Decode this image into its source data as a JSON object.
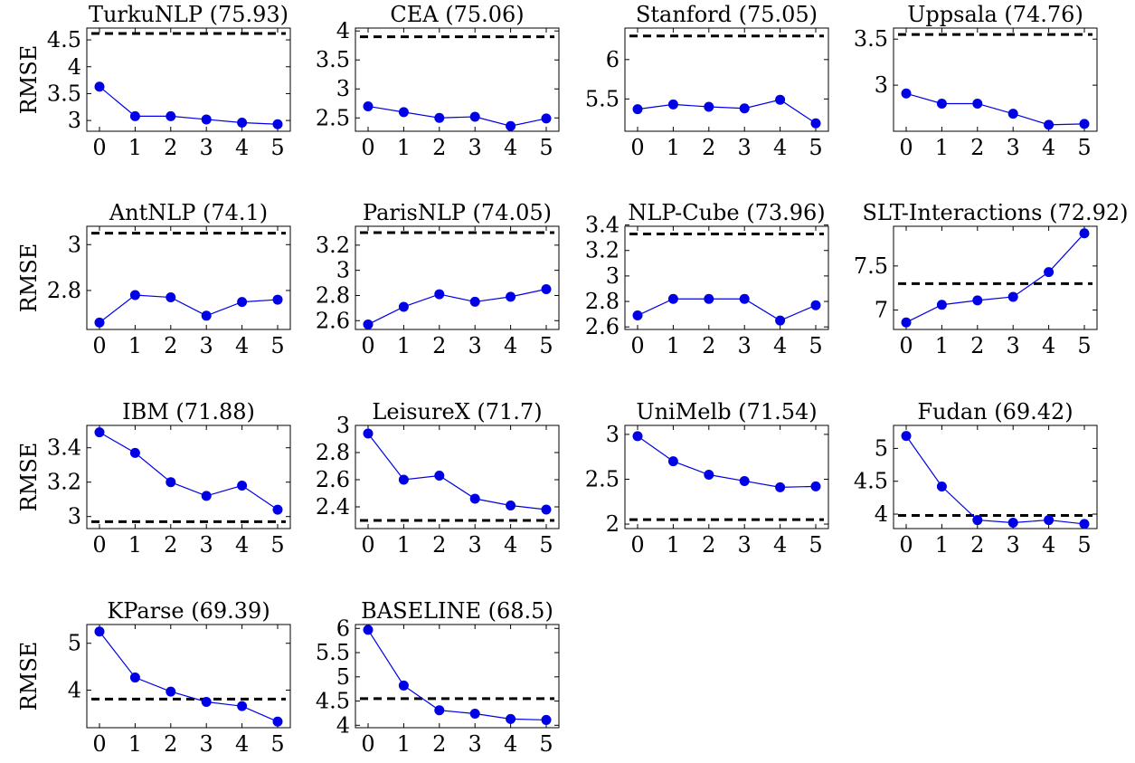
{
  "figure": {
    "ylabel": "RMSE"
  },
  "chart_data": [
    {
      "type": "line",
      "title": "TurkuNLP (75.93)",
      "ylabel": "RMSE",
      "x": [
        0,
        1,
        2,
        3,
        4,
        5
      ],
      "values": [
        3.63,
        3.08,
        3.08,
        3.02,
        2.96,
        2.93
      ],
      "baseline": 4.62,
      "ylim": [
        2.8,
        4.72
      ],
      "yticks": [
        3,
        3.5,
        4,
        4.5
      ],
      "ytick_labels": [
        "3",
        "3.5",
        "4",
        "4.5"
      ]
    },
    {
      "type": "line",
      "title": "CEA (75.06)",
      "ylabel": "",
      "x": [
        0,
        1,
        2,
        3,
        4,
        5
      ],
      "values": [
        2.7,
        2.6,
        2.5,
        2.52,
        2.36,
        2.49
      ],
      "baseline": 3.9,
      "ylim": [
        2.27,
        4.05
      ],
      "yticks": [
        2.5,
        3,
        3.5,
        4
      ],
      "ytick_labels": [
        "2.5",
        "3",
        "3.5",
        "4"
      ]
    },
    {
      "type": "line",
      "title": "Stanford (75.05)",
      "ylabel": "",
      "x": [
        0,
        1,
        2,
        3,
        4,
        5
      ],
      "values": [
        5.37,
        5.43,
        5.4,
        5.38,
        5.49,
        5.19
      ],
      "baseline": 6.3,
      "ylim": [
        5.09,
        6.4
      ],
      "yticks": [
        5.5,
        6
      ],
      "ytick_labels": [
        "5.5",
        "6"
      ]
    },
    {
      "type": "line",
      "title": "Uppsala (74.76)",
      "ylabel": "",
      "x": [
        0,
        1,
        2,
        3,
        4,
        5
      ],
      "values": [
        2.91,
        2.8,
        2.8,
        2.69,
        2.57,
        2.58
      ],
      "baseline": 3.55,
      "ylim": [
        2.5,
        3.62
      ],
      "yticks": [
        3,
        3.5
      ],
      "ytick_labels": [
        "3",
        "3.5"
      ]
    },
    {
      "type": "line",
      "title": "AntNLP (74.1)",
      "ylabel": "RMSE",
      "x": [
        0,
        1,
        2,
        3,
        4,
        5
      ],
      "values": [
        2.66,
        2.78,
        2.77,
        2.69,
        2.75,
        2.76
      ],
      "baseline": 3.05,
      "ylim": [
        2.63,
        3.08
      ],
      "yticks": [
        2.8,
        3
      ],
      "ytick_labels": [
        "2.8",
        "3"
      ]
    },
    {
      "type": "line",
      "title": "ParisNLP (74.05)",
      "ylabel": "",
      "x": [
        0,
        1,
        2,
        3,
        4,
        5
      ],
      "values": [
        2.57,
        2.71,
        2.81,
        2.75,
        2.79,
        2.85
      ],
      "baseline": 3.3,
      "ylim": [
        2.53,
        3.35
      ],
      "yticks": [
        2.6,
        2.8,
        3,
        3.2
      ],
      "ytick_labels": [
        "2.6",
        "2.8",
        "3",
        "3.2"
      ]
    },
    {
      "type": "line",
      "title": "NLP-Cube (73.96)",
      "ylabel": "",
      "x": [
        0,
        1,
        2,
        3,
        4,
        5
      ],
      "values": [
        2.69,
        2.82,
        2.82,
        2.82,
        2.65,
        2.77
      ],
      "baseline": 3.33,
      "ylim": [
        2.58,
        3.39
      ],
      "yticks": [
        2.6,
        2.8,
        3,
        3.2,
        3.4
      ],
      "ytick_labels": [
        "2.6",
        "2.8",
        "3",
        "3.2",
        "3.4"
      ]
    },
    {
      "type": "line",
      "title": "SLT-Interactions (72.92)",
      "ylabel": "",
      "x": [
        0,
        1,
        2,
        3,
        4,
        5
      ],
      "values": [
        6.86,
        7.06,
        7.11,
        7.15,
        7.43,
        7.87
      ],
      "baseline": 7.3,
      "ylim": [
        6.78,
        7.95
      ],
      "yticks": [
        7,
        7.5
      ],
      "ytick_labels": [
        "7",
        "7.5"
      ]
    },
    {
      "type": "line",
      "title": "IBM (71.88)",
      "ylabel": "RMSE",
      "x": [
        0,
        1,
        2,
        3,
        4,
        5
      ],
      "values": [
        3.49,
        3.37,
        3.2,
        3.12,
        3.18,
        3.04
      ],
      "baseline": 2.97,
      "ylim": [
        2.93,
        3.53
      ],
      "yticks": [
        3,
        3.2,
        3.4
      ],
      "ytick_labels": [
        "3",
        "3.2",
        "3.4"
      ]
    },
    {
      "type": "line",
      "title": "LeisureX (71.7)",
      "ylabel": "",
      "x": [
        0,
        1,
        2,
        3,
        4,
        5
      ],
      "values": [
        2.94,
        2.6,
        2.63,
        2.46,
        2.41,
        2.38
      ],
      "baseline": 2.3,
      "ylim": [
        2.24,
        3.0
      ],
      "yticks": [
        2.4,
        2.6,
        2.8,
        3
      ],
      "ytick_labels": [
        "2.4",
        "2.6",
        "2.8",
        "3"
      ]
    },
    {
      "type": "line",
      "title": "UniMelb (71.54)",
      "ylabel": "",
      "x": [
        0,
        1,
        2,
        3,
        4,
        5
      ],
      "values": [
        2.98,
        2.7,
        2.55,
        2.48,
        2.41,
        2.42
      ],
      "baseline": 2.05,
      "ylim": [
        1.95,
        3.1
      ],
      "yticks": [
        2,
        2.5,
        3
      ],
      "ytick_labels": [
        "2",
        "2.5",
        "3"
      ]
    },
    {
      "type": "line",
      "title": "Fudan (69.42)",
      "ylabel": "",
      "x": [
        0,
        1,
        2,
        3,
        4,
        5
      ],
      "values": [
        5.19,
        4.42,
        3.91,
        3.87,
        3.91,
        3.85
      ],
      "baseline": 3.98,
      "ylim": [
        3.78,
        5.35
      ],
      "yticks": [
        4,
        4.5,
        5
      ],
      "ytick_labels": [
        "4",
        "4.5",
        "5"
      ]
    },
    {
      "type": "line",
      "title": "KParse (69.39)",
      "ylabel": "RMSE",
      "x": [
        0,
        1,
        2,
        3,
        4,
        5
      ],
      "values": [
        5.25,
        4.27,
        3.97,
        3.75,
        3.66,
        3.33
      ],
      "baseline": 3.81,
      "ylim": [
        3.2,
        5.4
      ],
      "yticks": [
        4,
        5
      ],
      "ytick_labels": [
        "4",
        "5"
      ]
    },
    {
      "type": "line",
      "title": "BASELINE (68.5)",
      "ylabel": "",
      "x": [
        0,
        1,
        2,
        3,
        4,
        5
      ],
      "values": [
        5.97,
        4.82,
        4.31,
        4.24,
        4.13,
        4.11
      ],
      "baseline": 4.55,
      "ylim": [
        3.95,
        6.08
      ],
      "yticks": [
        4,
        4.5,
        5,
        5.5,
        6
      ],
      "ytick_labels": [
        "4",
        "4.5",
        "5",
        "5.5",
        "6"
      ]
    }
  ],
  "colors": {
    "series": "#0000e6",
    "baseline": "#000000",
    "axis": "#000000"
  }
}
